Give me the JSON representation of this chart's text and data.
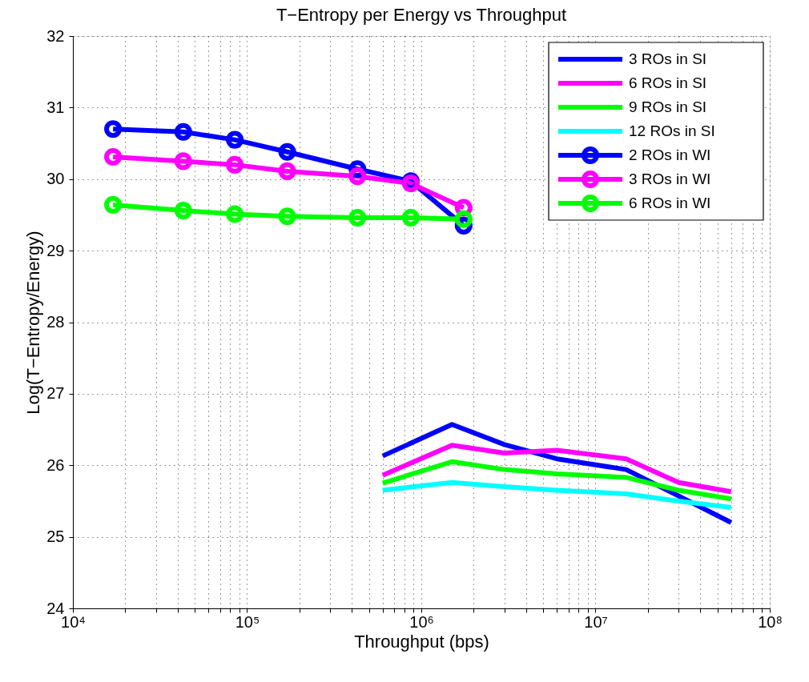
{
  "chart_data": {
    "type": "line",
    "title": "T−Entropy per Energy vs Throughput",
    "xlabel": "Throughput (bps)",
    "ylabel": "Log(T−Entropy/Energy)",
    "log": "x",
    "grid": true,
    "legend": "top right",
    "line_style": "solid",
    "xlim": [
      10000,
      100000000
    ],
    "ylim": [
      24,
      32
    ],
    "yticks": [
      24,
      25,
      26,
      27,
      28,
      29,
      30,
      31,
      32
    ],
    "xticks": [
      {
        "value": 10000,
        "label": "10⁴"
      },
      {
        "value": 20000,
        "label": null
      },
      {
        "value": 30000,
        "label": null
      },
      {
        "value": 40000,
        "label": null
      },
      {
        "value": 50000,
        "label": null
      },
      {
        "value": 60000,
        "label": null
      },
      {
        "value": 70000,
        "label": null
      },
      {
        "value": 80000,
        "label": null
      },
      {
        "value": 90000,
        "label": null
      },
      {
        "value": 100000,
        "label": "10⁵"
      },
      {
        "value": 200000,
        "label": null
      },
      {
        "value": 300000,
        "label": null
      },
      {
        "value": 400000,
        "label": null
      },
      {
        "value": 500000,
        "label": null
      },
      {
        "value": 600000,
        "label": null
      },
      {
        "value": 700000,
        "label": null
      },
      {
        "value": 800000,
        "label": null
      },
      {
        "value": 900000,
        "label": null
      },
      {
        "value": 1000000,
        "label": "10⁶"
      },
      {
        "value": 2000000,
        "label": null
      },
      {
        "value": 3000000,
        "label": null
      },
      {
        "value": 4000000,
        "label": null
      },
      {
        "value": 5000000,
        "label": null
      },
      {
        "value": 6000000,
        "label": null
      },
      {
        "value": 7000000,
        "label": null
      },
      {
        "value": 8000000,
        "label": null
      },
      {
        "value": 9000000,
        "label": null
      },
      {
        "value": 10000000,
        "label": "10⁷"
      },
      {
        "value": 20000000,
        "label": null
      },
      {
        "value": 30000000,
        "label": null
      },
      {
        "value": 40000000,
        "label": null
      },
      {
        "value": 50000000,
        "label": null
      },
      {
        "value": 60000000,
        "label": null
      },
      {
        "value": 70000000,
        "label": null
      },
      {
        "value": 80000000,
        "label": null
      },
      {
        "value": 90000000,
        "label": null
      },
      {
        "value": 100000000,
        "label": "10⁸"
      }
    ],
    "series": [
      {
        "name": "3 ROs in SI",
        "color": "#0000ff",
        "marker": "none",
        "x": [
          600000,
          1500000,
          3000000,
          6000000,
          15000000,
          30000000,
          60000000
        ],
        "values": [
          26.13,
          26.57,
          26.29,
          26.09,
          25.94,
          25.57,
          25.2
        ]
      },
      {
        "name": "6 ROs in SI",
        "color": "#ff00ff",
        "marker": "none",
        "x": [
          600000,
          1500000,
          3000000,
          6000000,
          15000000,
          30000000,
          60000000
        ],
        "values": [
          25.86,
          26.28,
          26.17,
          26.21,
          26.09,
          25.76,
          25.63
        ]
      },
      {
        "name": "9 ROs in SI",
        "color": "#00ff00",
        "marker": "none",
        "x": [
          600000,
          1500000,
          3000000,
          6000000,
          15000000,
          30000000,
          60000000
        ],
        "values": [
          25.75,
          26.05,
          25.94,
          25.88,
          25.83,
          25.65,
          25.53
        ]
      },
      {
        "name": "12 ROs in SI",
        "color": "#00ffff",
        "marker": "none",
        "x": [
          600000,
          1500000,
          3000000,
          6000000,
          15000000,
          30000000,
          60000000
        ],
        "values": [
          25.65,
          25.76,
          25.7,
          25.65,
          25.6,
          25.5,
          25.41
        ]
      },
      {
        "name": "2 ROs in WI",
        "color": "#0000ff",
        "marker": "circle",
        "x": [
          17000,
          43000,
          85000,
          170000,
          430000,
          870000,
          1750000
        ],
        "values": [
          30.7,
          30.66,
          30.55,
          30.38,
          30.14,
          29.97,
          29.35
        ]
      },
      {
        "name": "3 ROs in WI",
        "color": "#ff00ff",
        "marker": "circle",
        "x": [
          17000,
          43000,
          85000,
          170000,
          430000,
          870000,
          1750000
        ],
        "values": [
          30.31,
          30.25,
          30.2,
          30.11,
          30.04,
          29.94,
          29.6
        ]
      },
      {
        "name": "6 ROs in WI",
        "color": "#00ff00",
        "marker": "circle",
        "x": [
          17000,
          43000,
          85000,
          170000,
          430000,
          870000,
          1750000
        ],
        "values": [
          29.64,
          29.56,
          29.51,
          29.48,
          29.46,
          29.46,
          29.44
        ]
      }
    ]
  }
}
